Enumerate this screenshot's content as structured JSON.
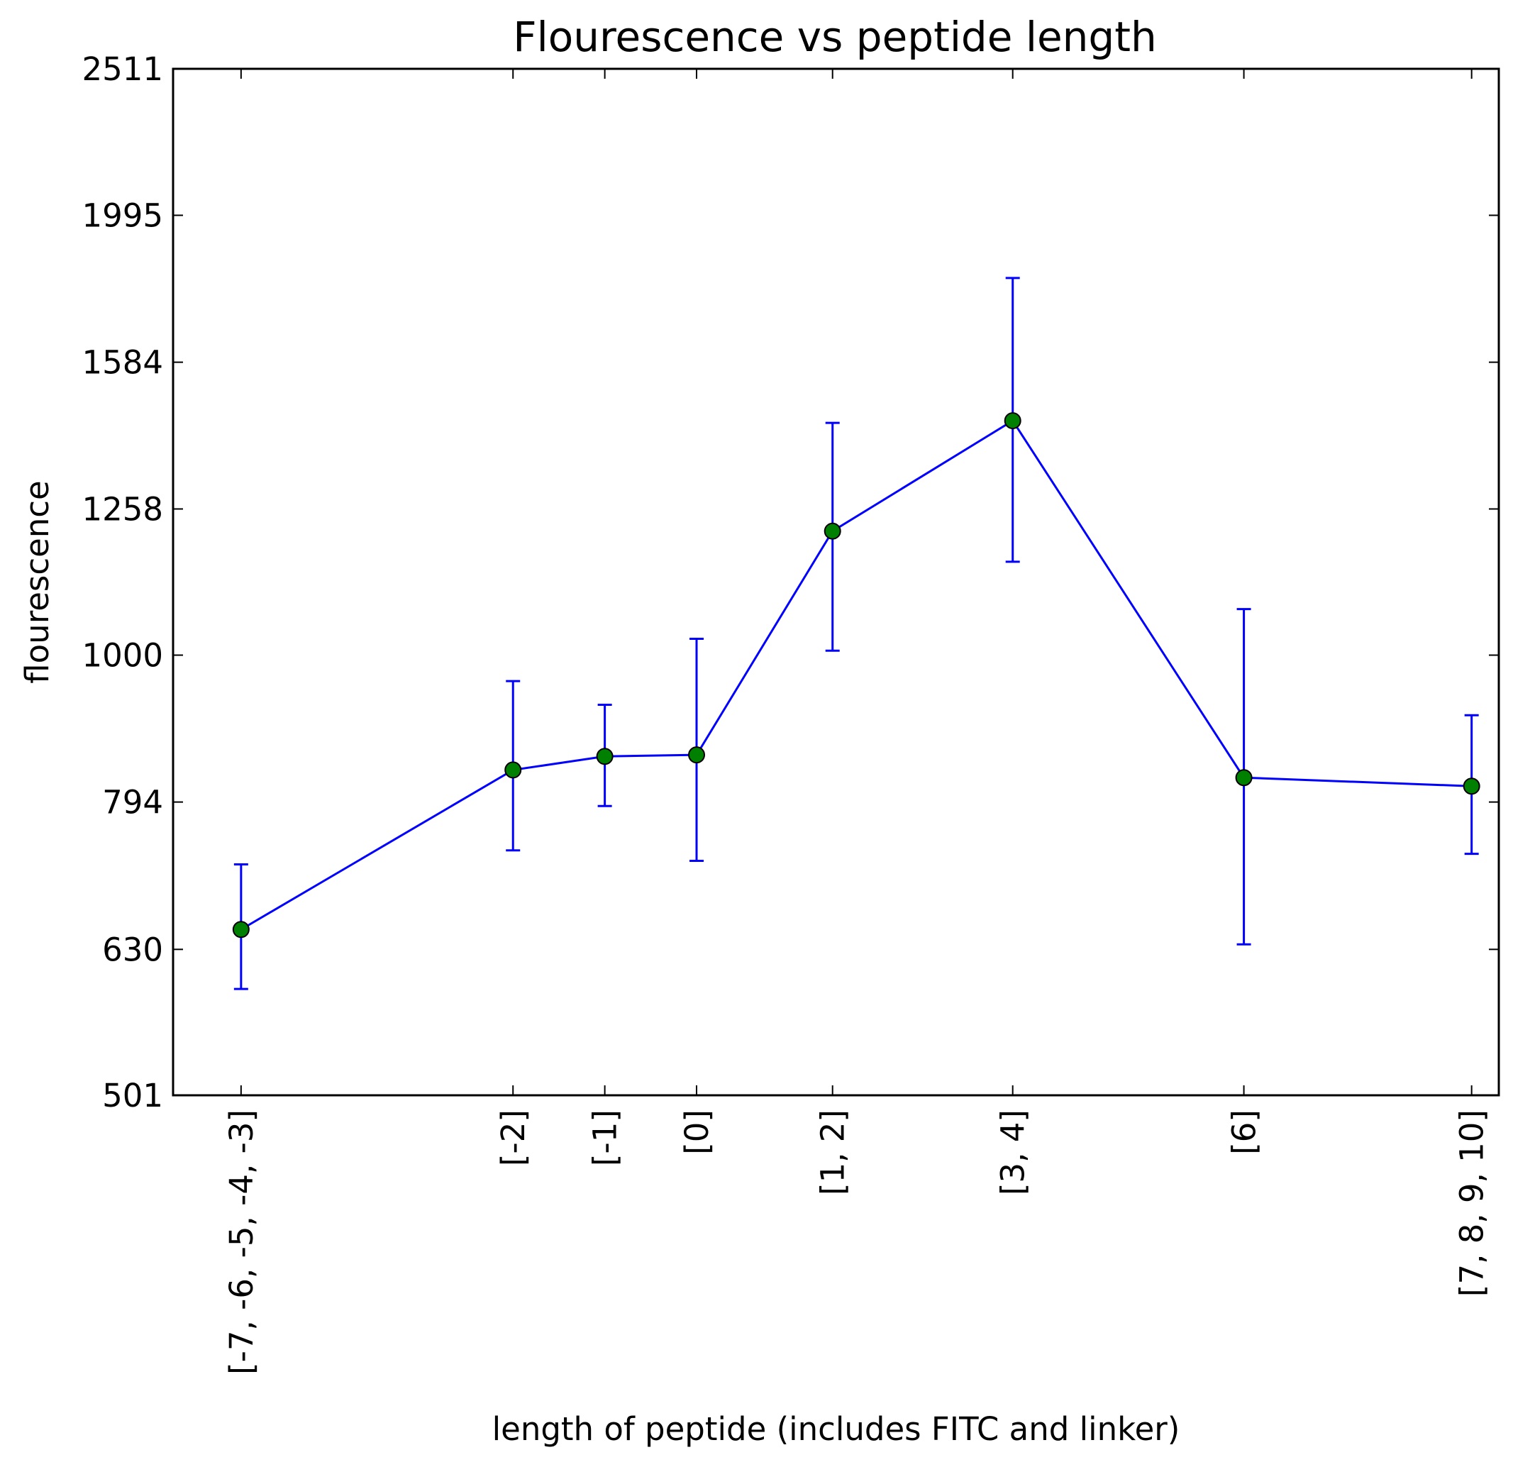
{
  "chart_data": {
    "type": "line",
    "title": "Flourescence vs peptide length",
    "xlabel": "length of peptide (includes FITC and linker)",
    "ylabel": "flourescence",
    "y_scale": "log",
    "ylim": [
      501,
      2511
    ],
    "y_ticks": [
      501,
      630,
      794,
      1000,
      1258,
      1584,
      1995,
      2511
    ],
    "y_tick_labels": [
      "501",
      "630",
      "794",
      "1000",
      "1258",
      "1584",
      "1995",
      "2511"
    ],
    "xlim": [
      -8.5,
      11.0
    ],
    "categories": [
      "[-7, -6, -5, -4, -3]",
      "[-2]",
      "[-1]",
      "[0]",
      "[1, 2]",
      "[3, 4]",
      "[6]",
      "[7, 8, 9, 10]"
    ],
    "x": [
      -7.5,
      -3.5,
      -2.15,
      -0.8,
      1.2,
      3.85,
      7.25,
      10.6
    ],
    "series": [
      {
        "values": [
          650,
          835,
          853,
          855,
          1215,
          1445,
          825,
          814
        ],
        "err_low": [
          592,
          736,
          789,
          724,
          1007,
          1158,
          635,
          732
        ],
        "err_high": [
          720,
          960,
          925,
          1026,
          1440,
          1808,
          1075,
          910
        ],
        "line_color": "#0000ff",
        "marker_color": "#008000",
        "marker_edge": "#000000"
      }
    ],
    "grid": false
  }
}
